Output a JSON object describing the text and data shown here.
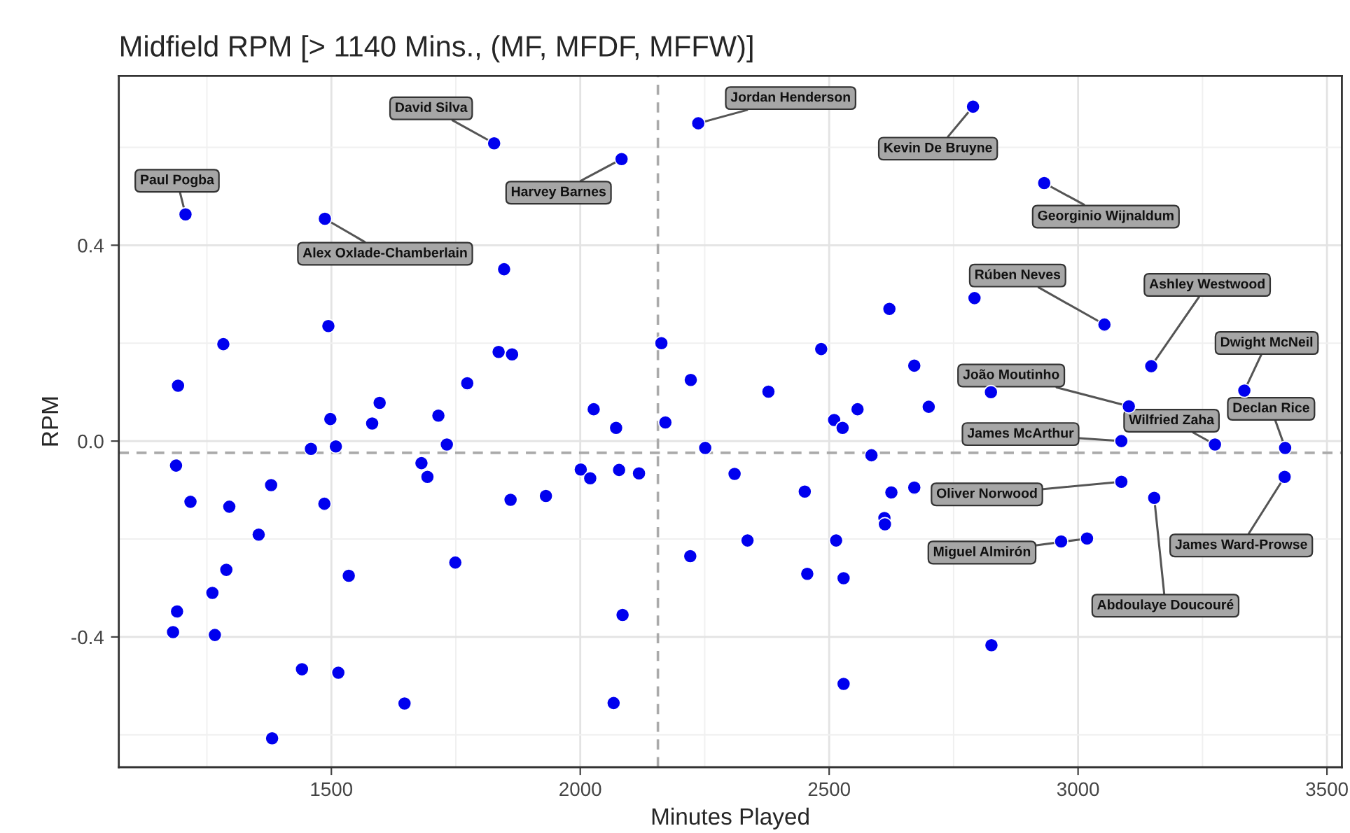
{
  "chart_data": {
    "type": "scatter",
    "title": "Midfield RPM [> 1140 Mins., (MF, MFDF, MFFW)]",
    "xlabel": "Minutes Played",
    "ylabel": "RPM",
    "x": [
      1827,
      1207,
      1487,
      1847,
      1494,
      1283,
      1836,
      1863,
      1192,
      1773,
      1597,
      1715,
      1498,
      1582,
      1459,
      1509,
      1732,
      1188,
      1681,
      1693,
      1217,
      1295,
      1379,
      1486,
      1860,
      1931,
      2001,
      1354,
      1289,
      1261,
      1535,
      1749,
      1190,
      1182,
      1266,
      1441,
      1514,
      1647,
      1381,
      2083,
      2237,
      2789,
      2792,
      2621,
      2163,
      2484,
      2671,
      2222,
      2378,
      2700,
      2557,
      2027,
      2171,
      2510,
      2527,
      2072,
      2251,
      2585,
      2020,
      2078,
      2118,
      2310,
      2451,
      2625,
      2671,
      2611,
      2612,
      2336,
      2514,
      2221,
      2456,
      2529,
      2085,
      2529,
      2067,
      2826,
      2932,
      3053,
      3147,
      3334,
      2825,
      3102,
      3087,
      3275,
      3416,
      3087,
      3153,
      3415,
      3018,
      2966
    ],
    "series": [
      {
        "color": "#0000ee",
        "values": [
          0.608,
          0.463,
          0.454,
          0.351,
          0.235,
          0.198,
          0.182,
          0.177,
          0.113,
          0.118,
          0.078,
          0.052,
          0.045,
          0.036,
          -0.016,
          -0.011,
          -0.007,
          -0.05,
          -0.045,
          -0.073,
          -0.124,
          -0.134,
          -0.09,
          -0.128,
          -0.12,
          -0.112,
          -0.058,
          -0.191,
          -0.263,
          -0.31,
          -0.275,
          -0.248,
          -0.348,
          -0.39,
          -0.396,
          -0.466,
          -0.473,
          -0.536,
          -0.607,
          0.576,
          0.649,
          0.683,
          0.292,
          0.27,
          0.2,
          0.188,
          0.154,
          0.125,
          0.101,
          0.07,
          0.065,
          0.065,
          0.038,
          0.043,
          0.027,
          0.027,
          -0.014,
          -0.029,
          -0.076,
          -0.059,
          -0.066,
          -0.067,
          -0.103,
          -0.105,
          -0.095,
          -0.157,
          -0.17,
          -0.203,
          -0.203,
          -0.235,
          -0.271,
          -0.28,
          -0.355,
          -0.496,
          -0.535,
          -0.417,
          0.527,
          0.238,
          0.153,
          0.103,
          0.1,
          0.071,
          0.0,
          -0.007,
          -0.014,
          -0.083,
          -0.116,
          -0.073,
          -0.199,
          -0.205
        ]
      }
    ],
    "xlim": [
      1073,
      3530
    ],
    "ylim": [
      -0.666,
      0.746
    ],
    "xticks": [
      1500,
      2000,
      2500,
      3000,
      3500
    ],
    "yticks": [
      {
        "value": -0.4,
        "label": "-0.4"
      },
      {
        "value": 0,
        "label": "0.0"
      },
      {
        "value": 0.4,
        "label": "0.4"
      }
    ],
    "grid": true,
    "marker": "circle",
    "legend": false,
    "ref_lines": [
      {
        "axis": "x",
        "value": 2156,
        "color": "#aaaaaa",
        "line_style": "dashed"
      },
      {
        "axis": "y",
        "value": -0.024,
        "color": "#aaaaaa",
        "line_style": "dashed"
      }
    ],
    "annotations": [
      {
        "text": "Paul Pogba",
        "x": 1207,
        "y": 0.463
      },
      {
        "text": "David Silva",
        "x": 1827,
        "y": 0.608
      },
      {
        "text": "Alex Oxlade-Chamberlain",
        "x": 1487,
        "y": 0.454
      },
      {
        "text": "Harvey Barnes",
        "x": 2083,
        "y": 0.576
      },
      {
        "text": "Jordan Henderson",
        "x": 2237,
        "y": 0.649
      },
      {
        "text": "Kevin De Bruyne",
        "x": 2789,
        "y": 0.683
      },
      {
        "text": "Georginio Wijnaldum",
        "x": 2932,
        "y": 0.527
      },
      {
        "text": "Rúben Neves",
        "x": 3053,
        "y": 0.238
      },
      {
        "text": "Ashley Westwood",
        "x": 3147,
        "y": 0.153
      },
      {
        "text": "Dwight McNeil",
        "x": 3334,
        "y": 0.103
      },
      {
        "text": "João Moutinho",
        "x": 3102,
        "y": 0.071
      },
      {
        "text": "Wilfried Zaha",
        "x": 3275,
        "y": -0.007
      },
      {
        "text": "Declan Rice",
        "x": 3416,
        "y": -0.014
      },
      {
        "text": "James McArthur",
        "x": 3087,
        "y": 0.0
      },
      {
        "text": "Oliver Norwood",
        "x": 3087,
        "y": -0.083
      },
      {
        "text": "Miguel Almirón",
        "x": 3018,
        "y": -0.199
      },
      {
        "text": "James Ward-Prowse",
        "x": 3415,
        "y": -0.073
      },
      {
        "text": "Abdoulaye Doucouré",
        "x": 3153,
        "y": -0.116
      }
    ]
  }
}
